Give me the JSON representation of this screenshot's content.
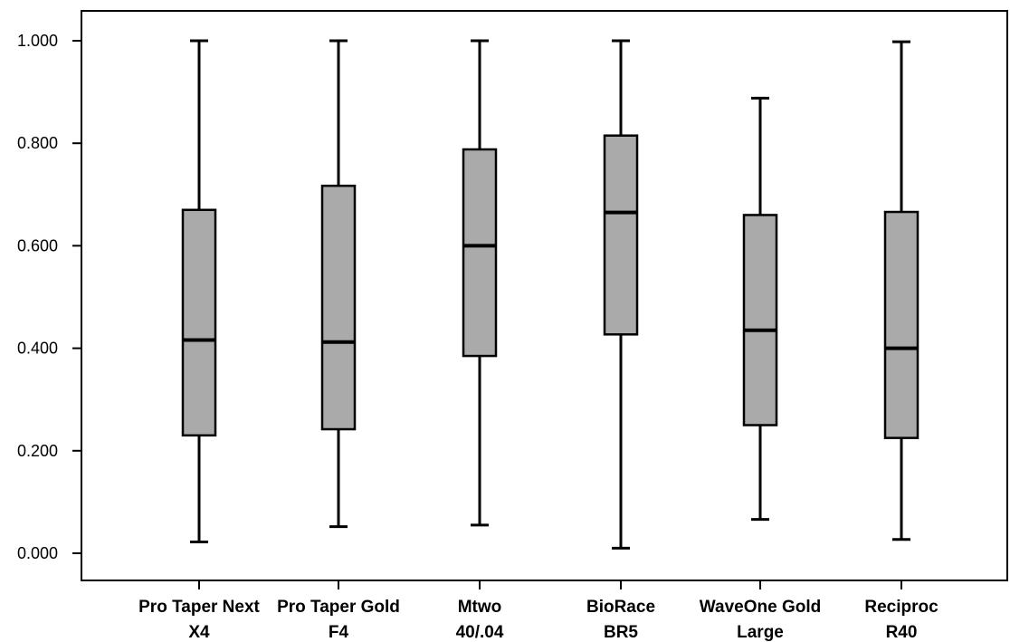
{
  "chart_data": {
    "type": "boxplot",
    "title": "",
    "xlabel": "",
    "ylabel": "",
    "ylim": [
      -0.05,
      1.06
    ],
    "yticks": [
      0.0,
      0.2,
      0.4,
      0.6,
      0.8,
      1.0
    ],
    "ytick_labels": [
      "0.000",
      "0.200",
      "0.400",
      "0.600",
      "0.800",
      "1.000"
    ],
    "grid": false,
    "legend": "none",
    "box_fill": "#aaaaaa",
    "line_color": "#000000",
    "categories": [
      {
        "line1": "Pro Taper Next",
        "line2": "X4",
        "min": 0.022,
        "q1": 0.23,
        "median": 0.416,
        "q3": 0.67,
        "max": 1.0
      },
      {
        "line1": "Pro Taper Gold",
        "line2": "F4",
        "min": 0.052,
        "q1": 0.242,
        "median": 0.412,
        "q3": 0.717,
        "max": 1.0
      },
      {
        "line1": "Mtwo",
        "line2": "40/.04",
        "min": 0.055,
        "q1": 0.385,
        "median": 0.6,
        "q3": 0.788,
        "max": 1.0
      },
      {
        "line1": "BioRace",
        "line2": "BR5",
        "min": 0.01,
        "q1": 0.427,
        "median": 0.665,
        "q3": 0.815,
        "max": 1.0
      },
      {
        "line1": "WaveOne Gold",
        "line2": "Large",
        "min": 0.066,
        "q1": 0.25,
        "median": 0.435,
        "q3": 0.66,
        "max": 0.888
      },
      {
        "line1": "Reciproc",
        "line2": "R40",
        "min": 0.027,
        "q1": 0.225,
        "median": 0.4,
        "q3": 0.666,
        "max": 0.998
      }
    ]
  }
}
